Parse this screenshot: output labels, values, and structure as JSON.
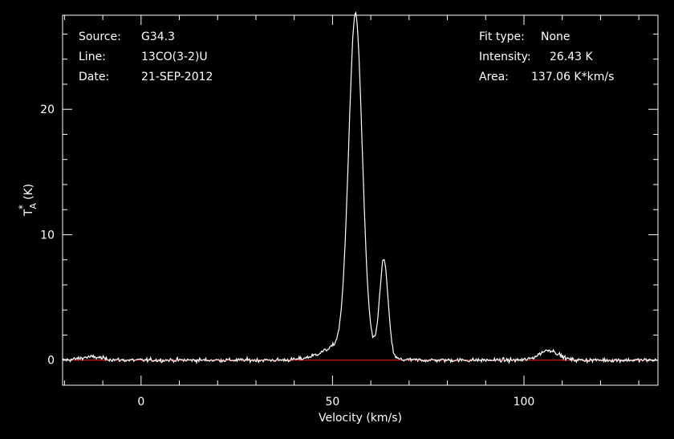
{
  "chart_data": {
    "type": "line",
    "xlabel": "Velocity (km/s)",
    "ylabel_main": "T",
    "ylabel_sub": "A",
    "ylabel_sup": "*",
    "ylabel_unit": "(K)",
    "xlim": [
      -20.5,
      135
    ],
    "ylim": [
      -2.0,
      27.5
    ],
    "x_ticks": [
      0,
      50,
      100
    ],
    "y_ticks": [
      0,
      10,
      20
    ],
    "baseline": 0,
    "baseline_color": "#ff2020",
    "series_color": "#ffffff",
    "info_left": [
      {
        "key": "Source:",
        "value": "G34.3"
      },
      {
        "key": "Line:",
        "value": "13CO(3-2)U"
      },
      {
        "key": "Date:",
        "value": "21-SEP-2012"
      }
    ],
    "info_right": [
      {
        "key": "Fit type:",
        "value": "None"
      },
      {
        "key": "Intensity:",
        "value": "26.43 K"
      },
      {
        "key": "Area:",
        "value": "137.06 K*km/s"
      }
    ],
    "components": [
      {
        "center": 56.0,
        "amplitude": 26.3,
        "sigma": 1.75
      },
      {
        "center": 63.4,
        "amplitude": 7.7,
        "sigma": 1.1
      },
      {
        "center": 106.5,
        "amplitude": 0.8,
        "sigma": 2.5
      }
    ],
    "wings": [
      {
        "center": 54.0,
        "amplitude": 1.4,
        "sigma": 5.5
      },
      {
        "center": -13.0,
        "amplitude": 0.25,
        "sigma": 3.0
      }
    ],
    "noise_rms": 0.2,
    "channel_width": 0.2
  }
}
